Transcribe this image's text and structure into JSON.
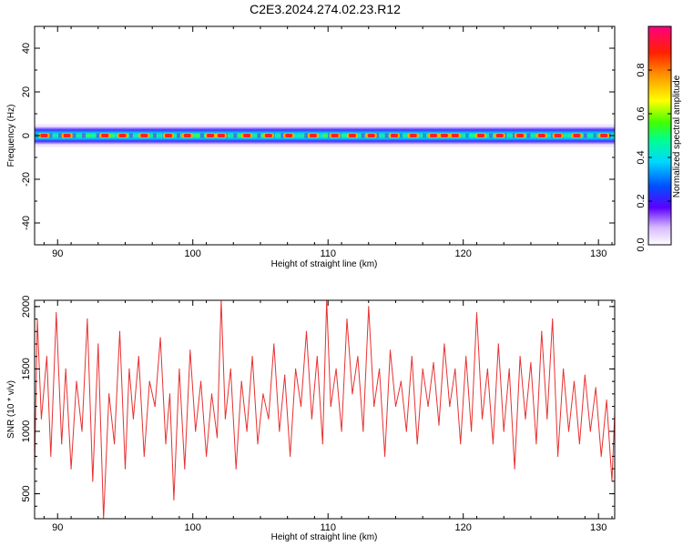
{
  "title": "C2E3.2024.274.02.23.R12",
  "colors": {
    "snr_line": "#e83030",
    "axis": "#000000"
  },
  "chart_data": [
    {
      "type": "heatmap",
      "xlabel": "Height of straight line (km)",
      "ylabel": "Frequency (Hz)",
      "xlim": [
        88.3,
        131.2
      ],
      "ylim": [
        -50,
        50
      ],
      "x_ticks": [
        90,
        100,
        110,
        120,
        130
      ],
      "y_ticks": [
        -40,
        -20,
        0,
        20,
        40
      ],
      "x_tick_labels": [
        "90",
        "100",
        "110",
        "120",
        "130"
      ],
      "y_tick_labels": [
        "-40",
        "-20",
        "0",
        "20",
        "40"
      ],
      "band_center_hz": 0,
      "band_halfwidth_hz": 4,
      "peak_heights_km": [
        89.0,
        90.7,
        93.5,
        94.8,
        96.4,
        98.2,
        99.6,
        101.3,
        102.1,
        104.0,
        105.6,
        107.1,
        108.9,
        110.5,
        111.8,
        113.2,
        114.9,
        116.3,
        117.8,
        118.6,
        119.4,
        121.3,
        122.7,
        124.2,
        125.8,
        127.0,
        128.4,
        130.4
      ],
      "colorbar": {
        "label": "Normalized spectral amplitude",
        "range": [
          0,
          1
        ],
        "ticks": [
          0.0,
          0.2,
          0.4,
          0.6,
          0.8
        ],
        "tick_labels": [
          "0.0",
          "0.2",
          "0.4",
          "0.6",
          "0.8"
        ]
      }
    },
    {
      "type": "line",
      "xlabel": "Height of straight line (km)",
      "ylabel": "SNR (10 * v/v)",
      "xlim": [
        88.3,
        131.2
      ],
      "ylim": [
        300,
        2050
      ],
      "x_ticks": [
        90,
        100,
        110,
        120,
        130
      ],
      "y_ticks": [
        500,
        1000,
        1500,
        2000
      ],
      "x_tick_labels": [
        "90",
        "100",
        "110",
        "120",
        "130"
      ],
      "y_tick_labels": [
        "500",
        "1000",
        "1500",
        "2000"
      ],
      "series": [
        {
          "x": [
            88.3,
            88.5,
            88.8,
            89.2,
            89.5,
            89.9,
            90.3,
            90.6,
            91.0,
            91.4,
            91.8,
            92.2,
            92.6,
            93.0,
            93.4,
            93.8,
            94.2,
            94.6,
            95.0,
            95.3,
            95.6,
            96.0,
            96.4,
            96.8,
            97.2,
            97.6,
            98.0,
            98.3,
            98.6,
            99.0,
            99.4,
            99.8,
            100.2,
            100.6,
            101.0,
            101.4,
            101.8,
            102.1,
            102.4,
            102.8,
            103.2,
            103.6,
            104.0,
            104.4,
            104.8,
            105.2,
            105.6,
            106.0,
            106.4,
            106.8,
            107.2,
            107.6,
            108.0,
            108.4,
            108.8,
            109.2,
            109.6,
            109.9,
            110.2,
            110.6,
            111.0,
            111.4,
            111.8,
            112.2,
            112.6,
            113.0,
            113.4,
            113.8,
            114.2,
            114.6,
            115.0,
            115.4,
            115.8,
            116.2,
            116.6,
            117.0,
            117.4,
            117.8,
            118.2,
            118.6,
            119.0,
            119.4,
            119.8,
            120.2,
            120.6,
            121.0,
            121.4,
            121.8,
            122.2,
            122.6,
            123.0,
            123.4,
            123.8,
            124.2,
            124.6,
            125.0,
            125.4,
            125.8,
            126.2,
            126.6,
            127.0,
            127.4,
            127.8,
            128.2,
            128.6,
            129.0,
            129.4,
            129.8,
            130.2,
            130.6,
            131.0,
            131.2
          ],
          "values": [
            700,
            1900,
            1100,
            1600,
            800,
            1950,
            900,
            1500,
            700,
            1400,
            1000,
            1900,
            600,
            1700,
            300,
            1300,
            900,
            1800,
            700,
            1500,
            1100,
            1600,
            800,
            1400,
            1200,
            1750,
            900,
            1300,
            450,
            1500,
            700,
            1650,
            1000,
            1400,
            800,
            1300,
            950,
            2050,
            1100,
            1500,
            700,
            1400,
            1000,
            1600,
            900,
            1300,
            1100,
            1700,
            1000,
            1450,
            800,
            1500,
            1200,
            1800,
            1100,
            1600,
            900,
            2050,
            1200,
            1500,
            1000,
            1900,
            1300,
            1600,
            1000,
            2000,
            1200,
            1500,
            800,
            1650,
            1200,
            1400,
            1000,
            1600,
            900,
            1500,
            1200,
            1550,
            1050,
            1700,
            1200,
            1500,
            900,
            1600,
            1000,
            1950,
            1100,
            1500,
            900,
            1700,
            1000,
            1500,
            700,
            1600,
            1100,
            1550,
            900,
            1800,
            1100,
            1900,
            800,
            1500,
            1000,
            1400,
            900,
            1450,
            1000,
            1350,
            800,
            1250,
            600,
            1150
          ]
        }
      ]
    }
  ]
}
